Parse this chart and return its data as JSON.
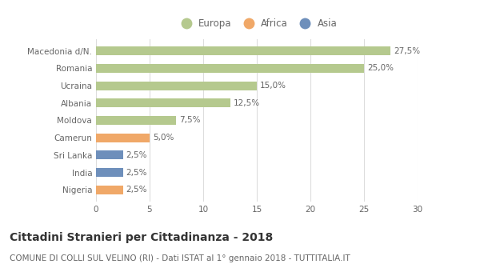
{
  "countries": [
    "Macedonia d/N.",
    "Romania",
    "Ucraina",
    "Albania",
    "Moldova",
    "Camerun",
    "Sri Lanka",
    "India",
    "Nigeria"
  ],
  "values": [
    27.5,
    25.0,
    15.0,
    12.5,
    7.5,
    5.0,
    2.5,
    2.5,
    2.5
  ],
  "labels": [
    "27,5%",
    "25,0%",
    "15,0%",
    "12,5%",
    "7,5%",
    "5,0%",
    "2,5%",
    "2,5%",
    "2,5%"
  ],
  "continents": [
    "Europa",
    "Europa",
    "Europa",
    "Europa",
    "Europa",
    "Africa",
    "Asia",
    "Asia",
    "Africa"
  ],
  "colors": {
    "Europa": "#b5c98e",
    "Africa": "#f0a868",
    "Asia": "#6e8fbb"
  },
  "xlim": [
    0,
    30
  ],
  "xticks": [
    0,
    5,
    10,
    15,
    20,
    25,
    30
  ],
  "title": "Cittadini Stranieri per Cittadinanza - 2018",
  "subtitle": "COMUNE DI COLLI SUL VELINO (RI) - Dati ISTAT al 1° gennaio 2018 - TUTTITALIA.IT",
  "background_color": "#ffffff",
  "grid_color": "#dddddd",
  "bar_height": 0.5,
  "title_fontsize": 10,
  "subtitle_fontsize": 7.5,
  "label_fontsize": 7.5,
  "tick_fontsize": 7.5,
  "legend_fontsize": 8.5
}
